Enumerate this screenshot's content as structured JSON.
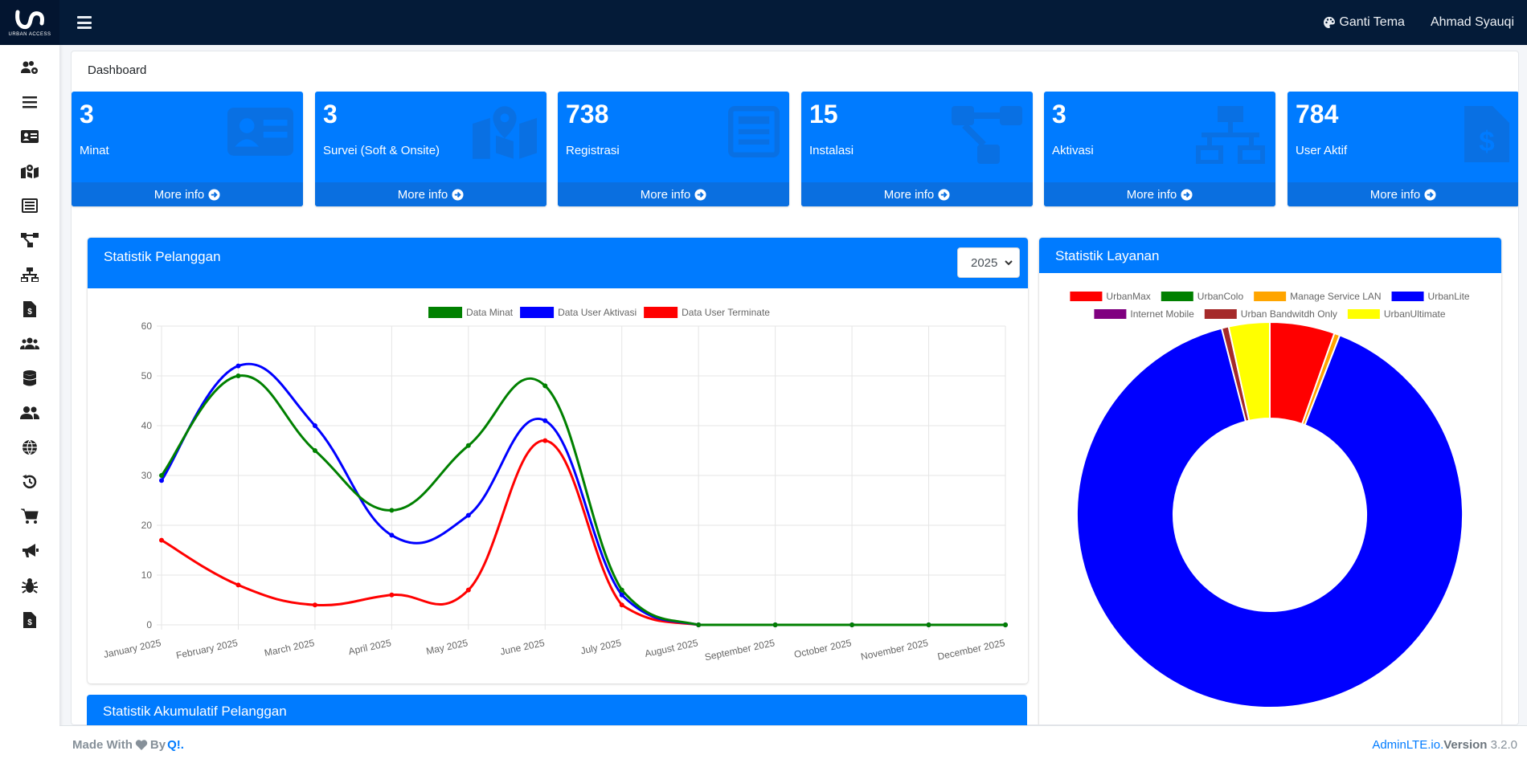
{
  "brand": {
    "text": "URBAN ACCESS"
  },
  "navbar": {
    "theme_label": "Ganti Tema",
    "user_name": "Ahmad Syauqi"
  },
  "sidebar": {
    "icons": [
      "users-cog-icon",
      "list-icon",
      "id-card-icon",
      "map-marked-icon",
      "newspaper-icon",
      "project-diagram-icon",
      "network-wired-icon",
      "file-invoice-dollar-icon",
      "users-icon",
      "database-icon",
      "user-friends-icon",
      "globe-icon",
      "history-icon",
      "cart-icon",
      "bullhorn-icon",
      "bug-icon",
      "file-invoice-dollar-icon"
    ]
  },
  "page": {
    "title": "Dashboard"
  },
  "boxes": [
    {
      "value": "3",
      "label": "Minat",
      "footer": "More info",
      "icon": "id-card-icon"
    },
    {
      "value": "3",
      "label": "Survei (Soft & Onsite)",
      "footer": "More info",
      "icon": "map-marked-icon"
    },
    {
      "value": "738",
      "label": "Registrasi",
      "footer": "More info",
      "icon": "newspaper-icon"
    },
    {
      "value": "15",
      "label": "Instalasi",
      "footer": "More info",
      "icon": "project-diagram-icon"
    },
    {
      "value": "3",
      "label": "Aktivasi",
      "footer": "More info",
      "icon": "network-wired-icon"
    },
    {
      "value": "784",
      "label": "User Aktif",
      "footer": "More info",
      "icon": "file-invoice-dollar-icon"
    }
  ],
  "pelanggan_card": {
    "title": "Statistik Pelanggan",
    "year": "2025"
  },
  "layanan_card": {
    "title": "Statistik Layanan"
  },
  "akumulatif_card": {
    "title": "Statistik Akumulatif Pelanggan"
  },
  "footer": {
    "made_with": "Made With",
    "by": "By",
    "by_link": "Q!.",
    "brand_link": "AdminLTE.io.",
    "version_label": "Version",
    "version": "3.2.0"
  },
  "colors": {
    "primary": "#007bff",
    "navbar": "#041b38"
  },
  "chart_data": [
    {
      "type": "line",
      "x": [
        "January 2025",
        "February 2025",
        "March 2025",
        "April 2025",
        "May 2025",
        "June 2025",
        "July 2025",
        "August 2025",
        "September 2025",
        "October 2025",
        "November 2025",
        "December 2025"
      ],
      "series": [
        {
          "name": "Data Minat",
          "color": "#008000",
          "values": [
            30,
            50,
            35,
            23,
            36,
            48,
            7,
            0,
            0,
            0,
            0,
            0
          ]
        },
        {
          "name": "Data User Aktivasi",
          "color": "#0000ff",
          "values": [
            29,
            52,
            40,
            18,
            22,
            41,
            6,
            0,
            0,
            0,
            0,
            0
          ]
        },
        {
          "name": "Data User Terminate",
          "color": "#ff0000",
          "values": [
            17,
            8,
            4,
            6,
            7,
            37,
            4,
            0,
            0,
            0,
            0,
            0
          ]
        }
      ],
      "yticks": [
        "0",
        "10",
        "20",
        "30",
        "40",
        "50",
        "60"
      ],
      "ylim": [
        0,
        60
      ],
      "grid": true,
      "legend": "top-center"
    },
    {
      "type": "pie",
      "variant": "doughnut",
      "labels": [
        "UrbanMax",
        "UrbanColo",
        "Manage Service LAN",
        "UrbanLite",
        "Internet Mobile",
        "Urban Bandwitdh Only",
        "UrbanUltimate"
      ],
      "colors": [
        "#ff0000",
        "#008000",
        "#ffa500",
        "#0000ff",
        "#800080",
        "#a52a2a",
        "#ffff00"
      ],
      "values": [
        46,
        0,
        4,
        762,
        0,
        5,
        29
      ],
      "legend": "top"
    }
  ]
}
